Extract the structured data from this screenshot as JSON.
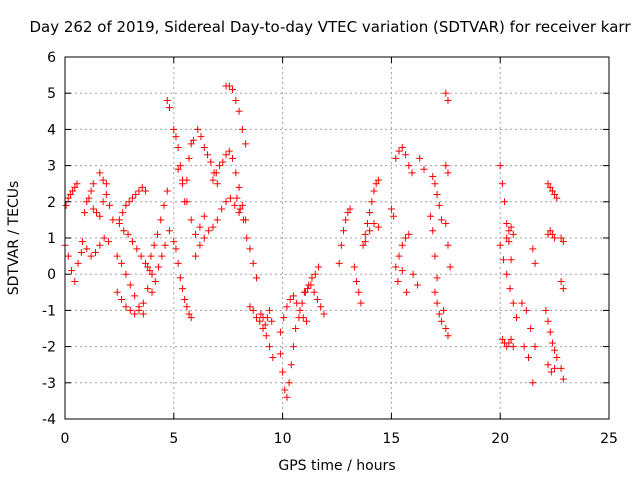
{
  "chart_data": {
    "type": "scatter",
    "title": "Day 262 of 2019, Sidereal Day-to-day VTEC variation (SDTVAR) for receiver karr",
    "xlabel": "GPS time / hours",
    "ylabel": "SDTVAR / TECUs",
    "xlim": [
      0,
      25
    ],
    "ylim": [
      -4,
      6
    ],
    "xticks": [
      "0",
      "5",
      "10",
      "15",
      "20",
      "25"
    ],
    "yticks": [
      "-4",
      "-3",
      "-2",
      "-1",
      "0",
      "1",
      "2",
      "3",
      "4",
      "5",
      "6"
    ],
    "grid": true,
    "marker": "plus",
    "color": "#ff0000",
    "series": [
      {
        "name": "s01",
        "x": [
          0.0,
          0.15,
          0.3,
          0.45,
          0.6,
          0.75
        ],
        "y": [
          0.8,
          0.5,
          0.1,
          -0.2,
          0.3,
          0.6
        ]
      },
      {
        "name": "s02",
        "x": [
          0.05,
          0.15,
          0.25,
          0.35,
          0.45,
          0.55
        ],
        "y": [
          1.9,
          2.1,
          2.2,
          2.3,
          2.4,
          2.5
        ]
      },
      {
        "name": "s03",
        "x": [
          0.9,
          1.0,
          1.1,
          1.2,
          1.3
        ],
        "y": [
          1.7,
          2.0,
          2.1,
          2.3,
          2.5
        ]
      },
      {
        "name": "s04",
        "x": [
          0.8,
          1.0,
          1.2,
          1.4,
          1.6,
          1.8,
          2.0
        ],
        "y": [
          0.9,
          0.7,
          0.5,
          0.6,
          0.8,
          1.0,
          0.9
        ]
      },
      {
        "name": "s05",
        "x": [
          1.3,
          1.45,
          1.6,
          1.75,
          1.9,
          2.05,
          2.2
        ],
        "y": [
          1.8,
          1.7,
          1.6,
          2.0,
          2.2,
          1.9,
          1.5
        ]
      },
      {
        "name": "s06",
        "x": [
          1.6,
          1.75,
          1.9
        ],
        "y": [
          2.8,
          2.6,
          2.5
        ]
      },
      {
        "name": "s07",
        "x": [
          2.5,
          2.65,
          2.8,
          2.95,
          3.1,
          3.25,
          3.4,
          3.55,
          3.7
        ],
        "y": [
          1.5,
          1.7,
          1.9,
          2.0,
          2.1,
          2.2,
          2.3,
          2.4,
          2.3
        ]
      },
      {
        "name": "s08",
        "x": [
          2.5,
          2.7,
          2.9,
          3.1,
          3.3,
          3.5,
          3.7,
          3.9
        ],
        "y": [
          1.4,
          1.2,
          1.1,
          0.9,
          0.7,
          0.5,
          0.3,
          0.1
        ]
      },
      {
        "name": "s09",
        "x": [
          2.4,
          2.6,
          2.8,
          3.0,
          3.2,
          3.4,
          3.6
        ],
        "y": [
          0.5,
          0.3,
          0.0,
          -0.3,
          -0.6,
          -0.9,
          -1.1
        ]
      },
      {
        "name": "s10",
        "x": [
          2.4,
          2.6,
          2.8,
          3.0,
          3.2,
          3.4,
          3.6,
          3.8,
          4.0
        ],
        "y": [
          -0.5,
          -0.7,
          -0.9,
          -1.0,
          -1.1,
          -1.0,
          -0.8,
          -0.4,
          0.0
        ]
      },
      {
        "name": "s11",
        "x": [
          3.8,
          3.95,
          4.1,
          4.25,
          4.4,
          4.55,
          4.7
        ],
        "y": [
          0.2,
          0.5,
          0.8,
          1.1,
          1.5,
          1.9,
          2.3
        ]
      },
      {
        "name": "s12",
        "x": [
          4.0,
          4.15,
          4.3,
          4.45,
          4.6
        ],
        "y": [
          -0.5,
          -0.2,
          0.2,
          0.5,
          0.8
        ]
      },
      {
        "name": "s13",
        "x": [
          4.7,
          4.8
        ],
        "y": [
          4.8,
          4.6
        ]
      },
      {
        "name": "s14",
        "x": [
          4.8,
          5.0
        ],
        "y": [
          1.2,
          0.9
        ]
      },
      {
        "name": "s15",
        "x": [
          5.0,
          5.1,
          5.2,
          5.3,
          5.4,
          5.5,
          5.6,
          5.7,
          5.8,
          5.9
        ],
        "y": [
          4.0,
          3.8,
          3.5,
          3.0,
          2.5,
          2.0,
          2.6,
          3.2,
          3.6,
          3.7
        ]
      },
      {
        "name": "s16",
        "x": [
          5.1,
          5.2,
          5.3,
          5.4,
          5.5,
          5.6,
          5.7,
          5.8
        ],
        "y": [
          0.7,
          0.3,
          -0.1,
          -0.4,
          -0.7,
          -0.9,
          -1.1,
          -1.2
        ]
      },
      {
        "name": "s17",
        "x": [
          5.2,
          5.4,
          5.6,
          5.8,
          6.0,
          6.2,
          6.4
        ],
        "y": [
          2.9,
          2.6,
          2.0,
          1.5,
          1.1,
          1.3,
          1.6
        ]
      },
      {
        "name": "s18",
        "x": [
          6.1,
          6.25,
          6.4,
          6.55,
          6.7,
          6.85,
          7.0
        ],
        "y": [
          4.0,
          3.8,
          3.5,
          3.3,
          3.1,
          2.8,
          2.5
        ]
      },
      {
        "name": "s19",
        "x": [
          6.0,
          6.2,
          6.4,
          6.6,
          6.8,
          7.0,
          7.2,
          7.4,
          7.6,
          7.8,
          8.0
        ],
        "y": [
          0.5,
          0.8,
          1.0,
          1.2,
          1.3,
          1.5,
          1.8,
          2.0,
          2.1,
          1.9,
          1.7
        ]
      },
      {
        "name": "s20",
        "x": [
          6.8,
          6.95,
          7.1,
          7.25,
          7.4,
          7.55,
          7.7,
          7.85,
          8.0,
          8.15,
          8.3
        ],
        "y": [
          2.6,
          2.8,
          3.0,
          3.1,
          3.3,
          3.4,
          3.2,
          2.8,
          2.4,
          1.9,
          1.5
        ]
      },
      {
        "name": "s21",
        "x": [
          7.4,
          7.55,
          7.7,
          7.85,
          8.0,
          8.15,
          8.3
        ],
        "y": [
          5.2,
          5.2,
          5.1,
          4.8,
          4.5,
          4.0,
          3.6
        ]
      },
      {
        "name": "s22",
        "x": [
          7.9,
          8.05,
          8.2,
          8.35,
          8.5,
          8.65,
          8.8
        ],
        "y": [
          2.1,
          1.8,
          1.5,
          1.0,
          0.7,
          0.3,
          -0.1
        ]
      },
      {
        "name": "s23",
        "x": [
          8.5,
          8.65,
          8.8,
          8.95,
          9.1,
          9.25,
          9.4,
          9.55
        ],
        "y": [
          -0.9,
          -1.0,
          -1.2,
          -1.3,
          -1.5,
          -1.7,
          -2.0,
          -2.3
        ]
      },
      {
        "name": "s24",
        "x": [
          9.0,
          9.1,
          9.2,
          9.3,
          9.4,
          9.5
        ],
        "y": [
          -1.1,
          -1.2,
          -1.4,
          -1.2,
          -1.0,
          -1.3
        ]
      },
      {
        "name": "s25",
        "x": [
          9.9,
          10.0,
          10.1,
          10.2,
          10.3,
          10.4,
          10.5
        ],
        "y": [
          -2.2,
          -2.7,
          -3.2,
          -3.4,
          -3.0,
          -2.5,
          -2.0
        ]
      },
      {
        "name": "s26",
        "x": [
          9.9,
          10.05,
          10.2,
          10.35,
          10.5,
          10.65,
          10.8,
          10.95,
          11.1
        ],
        "y": [
          -1.6,
          -1.2,
          -0.9,
          -0.7,
          -0.6,
          -0.8,
          -1.0,
          -1.2,
          -1.3
        ]
      },
      {
        "name": "s27",
        "x": [
          10.6,
          10.75,
          10.9,
          11.05,
          11.2,
          11.35,
          11.5,
          11.65
        ],
        "y": [
          -1.5,
          -1.2,
          -0.8,
          -0.5,
          -0.3,
          -0.1,
          0.0,
          0.2
        ]
      },
      {
        "name": "s28",
        "x": [
          11.0,
          11.15,
          11.3,
          11.45,
          11.6,
          11.75,
          11.9
        ],
        "y": [
          -0.5,
          -0.4,
          -0.3,
          -0.5,
          -0.7,
          -0.9,
          -1.1
        ]
      },
      {
        "name": "s29",
        "x": [
          12.6,
          12.7,
          12.8,
          12.9,
          13.0,
          13.1
        ],
        "y": [
          0.3,
          0.8,
          1.2,
          1.5,
          1.7,
          1.8
        ]
      },
      {
        "name": "s30",
        "x": [
          13.3,
          13.4,
          13.5,
          13.6
        ],
        "y": [
          0.2,
          -0.2,
          -0.5,
          -0.8
        ]
      },
      {
        "name": "s31",
        "x": [
          13.7,
          13.8,
          13.9,
          14.0,
          14.1,
          14.2,
          14.3,
          14.4
        ],
        "y": [
          0.8,
          1.1,
          1.4,
          1.7,
          2.0,
          2.3,
          2.5,
          2.6
        ]
      },
      {
        "name": "s32",
        "x": [
          13.8,
          14.0,
          14.2,
          14.4
        ],
        "y": [
          0.9,
          1.2,
          1.4,
          1.3
        ]
      },
      {
        "name": "s33",
        "x": [
          15.0,
          15.1
        ],
        "y": [
          1.8,
          1.6
        ]
      },
      {
        "name": "s34",
        "x": [
          15.2,
          15.35,
          15.5,
          15.65,
          15.8,
          15.95
        ],
        "y": [
          3.2,
          3.4,
          3.5,
          3.3,
          3.0,
          2.8
        ]
      },
      {
        "name": "s35",
        "x": [
          15.2,
          15.35,
          15.5,
          15.65,
          15.8
        ],
        "y": [
          0.2,
          0.5,
          0.8,
          1.0,
          1.1
        ]
      },
      {
        "name": "s36",
        "x": [
          15.3,
          15.5,
          15.7
        ],
        "y": [
          -0.2,
          0.1,
          -0.5
        ]
      },
      {
        "name": "s37",
        "x": [
          16.0,
          16.2
        ],
        "y": [
          0.0,
          -0.3
        ]
      },
      {
        "name": "s38",
        "x": [
          16.3,
          16.5
        ],
        "y": [
          3.2,
          2.9
        ]
      },
      {
        "name": "s39",
        "x": [
          16.8,
          16.9,
          17.0,
          17.1
        ],
        "y": [
          1.6,
          1.2,
          0.5,
          -0.1
        ]
      },
      {
        "name": "s40",
        "x": [
          17.0,
          17.1,
          17.2,
          17.3,
          17.4
        ],
        "y": [
          -0.5,
          -0.8,
          -1.1,
          -1.3,
          -1.0
        ]
      },
      {
        "name": "s41",
        "x": [
          16.9,
          17.0,
          17.1,
          17.2,
          17.3
        ],
        "y": [
          2.7,
          2.5,
          2.2,
          1.9,
          1.5
        ]
      },
      {
        "name": "s42",
        "x": [
          17.5,
          17.6
        ],
        "y": [
          5.0,
          4.8
        ]
      },
      {
        "name": "s43",
        "x": [
          17.5,
          17.6
        ],
        "y": [
          3.0,
          2.8
        ]
      },
      {
        "name": "s44",
        "x": [
          17.5,
          17.6,
          17.7
        ],
        "y": [
          1.4,
          0.8,
          0.2
        ]
      },
      {
        "name": "s45",
        "x": [
          17.5,
          17.6
        ],
        "y": [
          -1.5,
          -1.7
        ]
      },
      {
        "name": "s46",
        "x": [
          20.0,
          20.1,
          20.2,
          20.3,
          20.4,
          20.5
        ],
        "y": [
          3.0,
          2.5,
          2.0,
          1.4,
          0.9,
          0.4
        ]
      },
      {
        "name": "s47",
        "x": [
          20.0,
          20.15,
          20.3,
          20.45,
          20.6,
          20.75
        ],
        "y": [
          0.8,
          0.4,
          0.0,
          -0.4,
          -0.8,
          -1.2
        ]
      },
      {
        "name": "s48",
        "x": [
          20.1,
          20.2,
          20.3,
          20.4,
          20.5,
          20.6
        ],
        "y": [
          -1.8,
          -1.9,
          -2.0,
          -1.9,
          -1.8,
          -2.0
        ]
      },
      {
        "name": "s49",
        "x": [
          20.3,
          20.4,
          20.5,
          20.6
        ],
        "y": [
          1.0,
          1.2,
          1.3,
          1.1
        ]
      },
      {
        "name": "s50",
        "x": [
          21.0,
          21.2,
          21.4,
          21.6
        ],
        "y": [
          -0.8,
          -1.0,
          -1.5,
          -2.0
        ]
      },
      {
        "name": "s51",
        "x": [
          21.1,
          21.3
        ],
        "y": [
          -2.0,
          -2.3
        ]
      },
      {
        "name": "s52",
        "x": [
          21.5
        ],
        "y": [
          -3.0
        ]
      },
      {
        "name": "s53",
        "x": [
          21.5,
          21.6
        ],
        "y": [
          0.7,
          0.3
        ]
      },
      {
        "name": "s54",
        "x": [
          22.2,
          22.3,
          22.4,
          22.5,
          22.6
        ],
        "y": [
          2.5,
          2.4,
          2.3,
          2.2,
          2.1
        ]
      },
      {
        "name": "s55",
        "x": [
          22.2,
          22.3,
          22.4,
          22.5
        ],
        "y": [
          1.1,
          1.2,
          1.1,
          1.0
        ]
      },
      {
        "name": "s56",
        "x": [
          22.1,
          22.2,
          22.3,
          22.4,
          22.5,
          22.6
        ],
        "y": [
          -1.0,
          -1.3,
          -1.6,
          -1.9,
          -2.1,
          -2.3
        ]
      },
      {
        "name": "s57",
        "x": [
          22.2,
          22.35,
          22.5
        ],
        "y": [
          -2.5,
          -2.7,
          -2.6
        ]
      },
      {
        "name": "s58",
        "x": [
          22.8,
          22.9
        ],
        "y": [
          1.0,
          0.9
        ]
      },
      {
        "name": "s59",
        "x": [
          22.8,
          22.9
        ],
        "y": [
          -0.2,
          -0.4
        ]
      },
      {
        "name": "s60",
        "x": [
          22.8,
          22.9
        ],
        "y": [
          -2.6,
          -2.9
        ]
      }
    ]
  }
}
